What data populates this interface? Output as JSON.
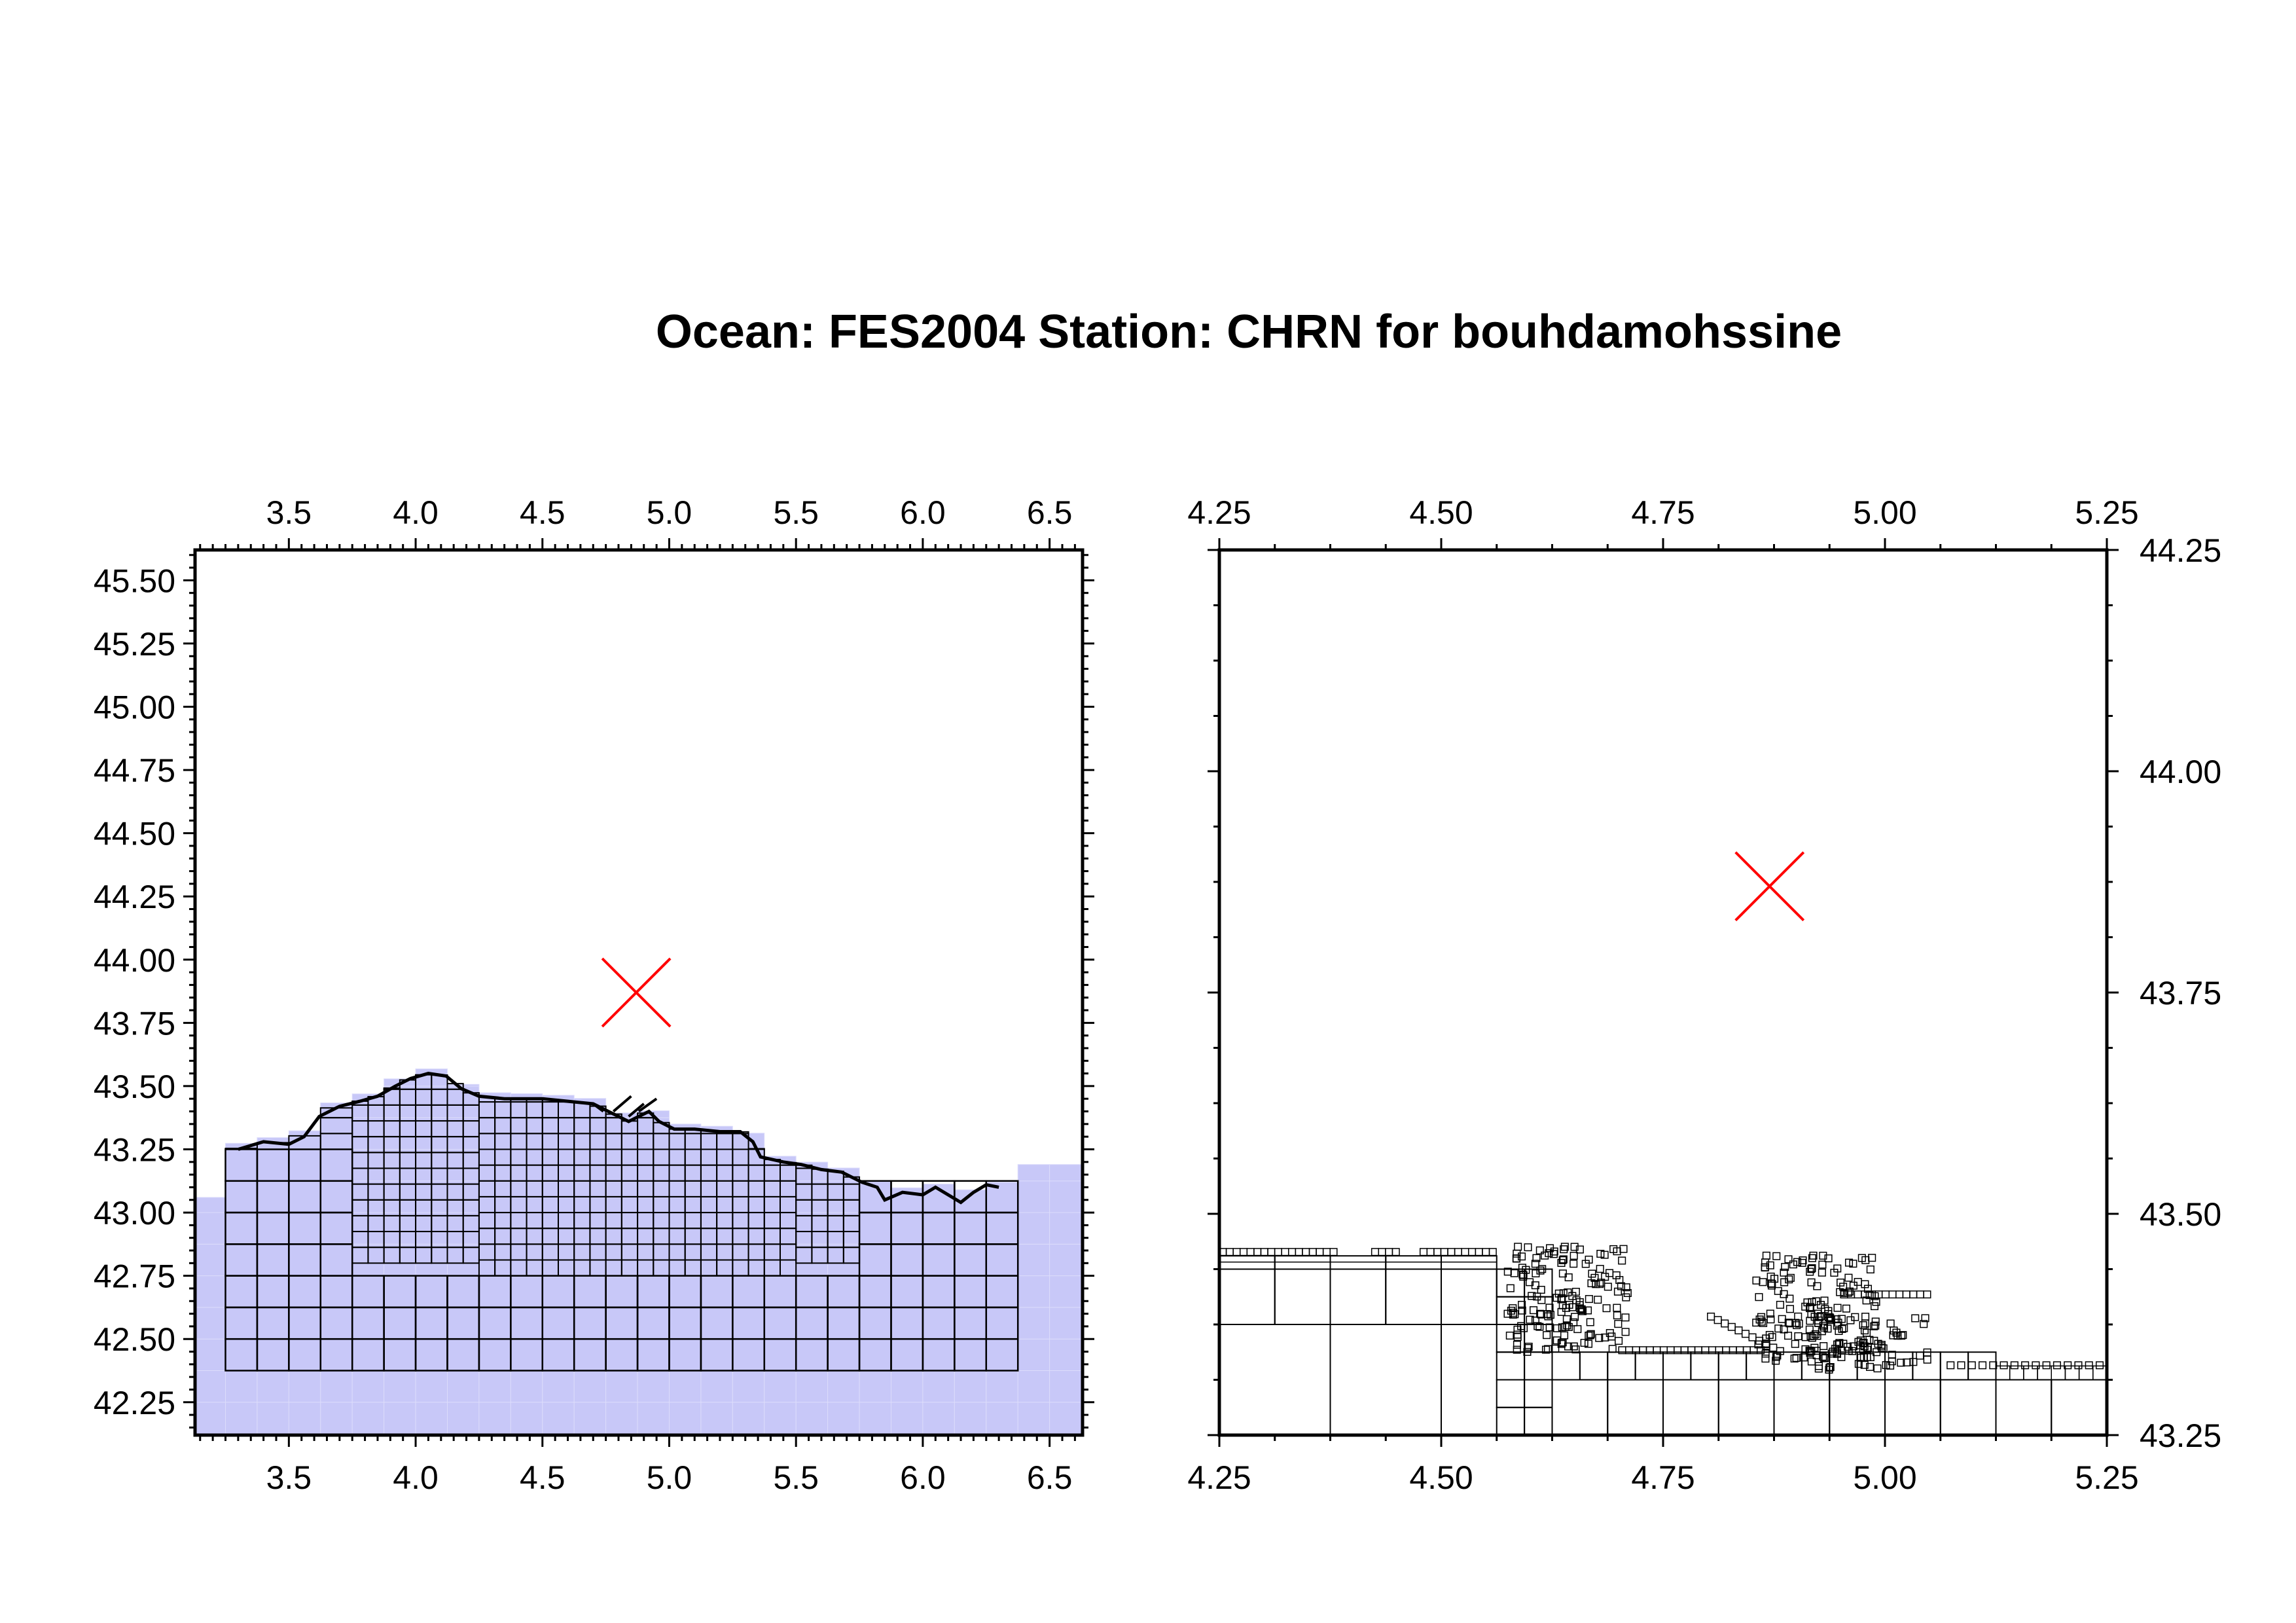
{
  "title": "Ocean: FES2004  Station: CHRN  for bouhdamohssine",
  "colors": {
    "mesh_fill": "#c8c8f8",
    "mesh_line": "#000000",
    "station_marker": "#ff0000",
    "frame": "#000000"
  },
  "station": {
    "name": "CHRN",
    "lon": 4.87,
    "lat": 43.87,
    "marker": "x-cross"
  },
  "chart_data": [
    {
      "type": "map",
      "name": "overview",
      "x_range": [
        3.13,
        6.63
      ],
      "y_range": [
        42.12,
        45.62
      ],
      "x_ticks": [
        "3.5",
        "4.0",
        "4.5",
        "5.0",
        "5.5",
        "6.0",
        "6.5"
      ],
      "y_ticks": [
        "42.25",
        "42.50",
        "42.75",
        "43.00",
        "43.25",
        "43.50",
        "43.75",
        "44.00",
        "44.25",
        "44.50",
        "44.75",
        "45.00",
        "45.25",
        "45.50"
      ],
      "x_ticks_position": [
        "top",
        "bottom"
      ],
      "y_ticks_position": "left",
      "station_marker": {
        "lon": 4.87,
        "lat": 43.87
      },
      "layers": [
        "coarse mesh (shaded)",
        "fine mesh (outlined)",
        "coastline"
      ]
    },
    {
      "type": "map",
      "name": "zoom",
      "x_range": [
        4.25,
        5.25
      ],
      "y_range": [
        43.25,
        44.25
      ],
      "x_ticks": [
        "4.25",
        "4.50",
        "4.75",
        "5.00",
        "5.25"
      ],
      "y_ticks": [
        "43.25",
        "43.50",
        "43.75",
        "44.00",
        "44.25"
      ],
      "x_ticks_position": [
        "top",
        "bottom"
      ],
      "y_ticks_position": "right",
      "station_marker": {
        "lon": 4.87,
        "lat": 43.87
      },
      "layers": [
        "fine mesh (outlined)"
      ]
    }
  ]
}
